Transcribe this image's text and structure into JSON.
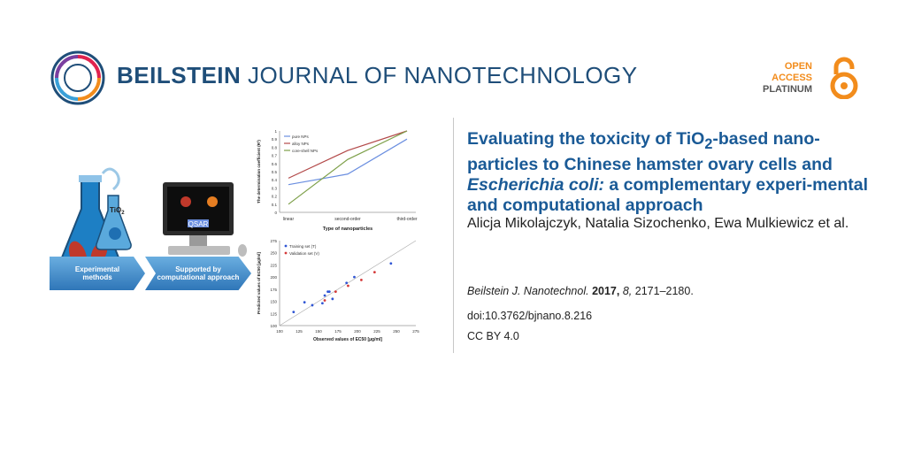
{
  "header": {
    "journal_bold": "BEILSTEIN",
    "journal_rest": " JOURNAL OF NANOTECHNOLOGY",
    "oa_line1": "OPEN",
    "oa_line2": "ACCESS",
    "oa_line3": "PLATINUM"
  },
  "article": {
    "title_part1": "Evaluating the toxicity of TiO",
    "title_sub": "2",
    "title_part2": "-based nano-particles to Chinese hamster ovary cells and ",
    "title_italic": "Escherichia coli:",
    "title_part3": " a complementary experi-mental and computational approach",
    "authors": "Alicja Mikolajczyk, Natalia Sizochenko, Ewa Mulkiewicz et al.",
    "journal_abbrev": "Beilstein J. Nanotechnol.",
    "year": "2017,",
    "volume": "8,",
    "pages": "2171–2180.",
    "doi": "doi:10.3762/bjnano.8.216",
    "license": "CC BY 4.0"
  },
  "graphic": {
    "tio_label": "TiO",
    "tio_sub": "2",
    "qsar_label": "QSAR",
    "arrow1_label": "Experimental methods",
    "arrow2_label": "Supported by computational approach"
  },
  "colors": {
    "brand_blue": "#1f4e79",
    "title_blue": "#1a5a96",
    "oa_orange": "#f28c1c"
  },
  "chart_data": [
    {
      "type": "line",
      "ylabel": "The determination coefficient (R²)",
      "xlabel": "Type of nanoparticles",
      "categories": [
        "linear",
        "second-order",
        "third-order"
      ],
      "ylim": [
        0,
        1
      ],
      "yticks": [
        "0",
        "0.1",
        "0.2",
        "0.3",
        "0.4",
        "0.5",
        "0.6",
        "0.7",
        "0.8",
        "0.9",
        "1"
      ],
      "legend": "top-left",
      "series": [
        {
          "name": "pure NPs",
          "color": "#6b8fe0",
          "values": [
            0.34,
            0.47,
            0.9
          ]
        },
        {
          "name": "alloy NPs",
          "color": "#b34a4a",
          "values": [
            0.42,
            0.76,
            1.0
          ]
        },
        {
          "name": "core-shell NPs",
          "color": "#7ea04a",
          "values": [
            0.1,
            0.65,
            1.0
          ]
        }
      ]
    },
    {
      "type": "scatter",
      "xlabel": "Observed values of EC50 [µg/ml]",
      "ylabel": "Predicted values of EC50 [µg/ml]",
      "xlim": [
        100,
        275
      ],
      "ylim": [
        100,
        275
      ],
      "xticks": [
        "100",
        "125",
        "150",
        "175",
        "200",
        "225",
        "250",
        "275"
      ],
      "yticks": [
        "100",
        "125",
        "150",
        "175",
        "200",
        "225",
        "250",
        "275"
      ],
      "legend": "top-left",
      "series": [
        {
          "name": "Training set (T)",
          "color": "#2f55d4",
          "x": [
            118,
            132,
            142,
            155,
            158,
            162,
            164,
            168,
            186,
            196,
            243
          ],
          "y": [
            128,
            148,
            142,
            146,
            162,
            170,
            170,
            155,
            188,
            200,
            228
          ]
        },
        {
          "name": "Validation set (V)",
          "color": "#d43a3a",
          "x": [
            158,
            172,
            188,
            205,
            222
          ],
          "y": [
            152,
            170,
            182,
            194,
            210
          ]
        }
      ]
    }
  ]
}
